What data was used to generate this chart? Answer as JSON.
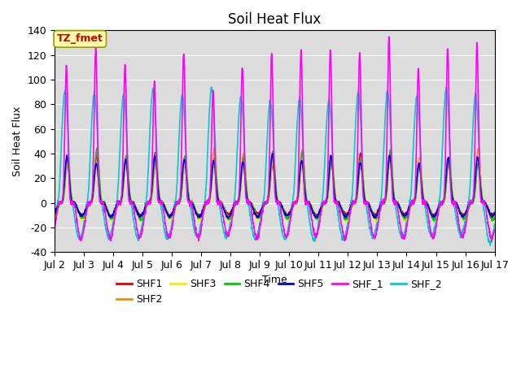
{
  "title": "Soil Heat Flux",
  "xlabel": "Time",
  "ylabel": "Soil Heat Flux",
  "ylim": [
    -40,
    140
  ],
  "xtick_labels": [
    "Jul 2",
    "Jul 3",
    "Jul 4",
    "Jul 5",
    "Jul 6",
    "Jul 7",
    "Jul 8",
    "Jul 9",
    "Jul 10",
    "Jul 11",
    "Jul 12",
    "Jul 13",
    "Jul 14",
    "Jul 15",
    "Jul 16",
    "Jul 17"
  ],
  "ytick_values": [
    -40,
    -20,
    0,
    20,
    40,
    60,
    80,
    100,
    120,
    140
  ],
  "annotation_text": "TZ_fmet",
  "annotation_color": "#cc0000",
  "annotation_bg": "#ffffaa",
  "annotation_border": "#999900",
  "series": [
    {
      "name": "SHF1",
      "color": "#dd0000",
      "lw": 1.2
    },
    {
      "name": "SHF2",
      "color": "#ff8800",
      "lw": 1.2
    },
    {
      "name": "SHF3",
      "color": "#eeee00",
      "lw": 1.2
    },
    {
      "name": "SHF4",
      "color": "#00cc00",
      "lw": 1.2
    },
    {
      "name": "SHF5",
      "color": "#0000dd",
      "lw": 1.2
    },
    {
      "name": "SHF_1",
      "color": "#ff00ff",
      "lw": 1.2
    },
    {
      "name": "SHF_2",
      "color": "#00cccc",
      "lw": 1.2
    }
  ],
  "bg_color": "#dcdcdc",
  "title_fontsize": 12,
  "label_fontsize": 9,
  "tick_fontsize": 9,
  "legend_fontsize": 9
}
